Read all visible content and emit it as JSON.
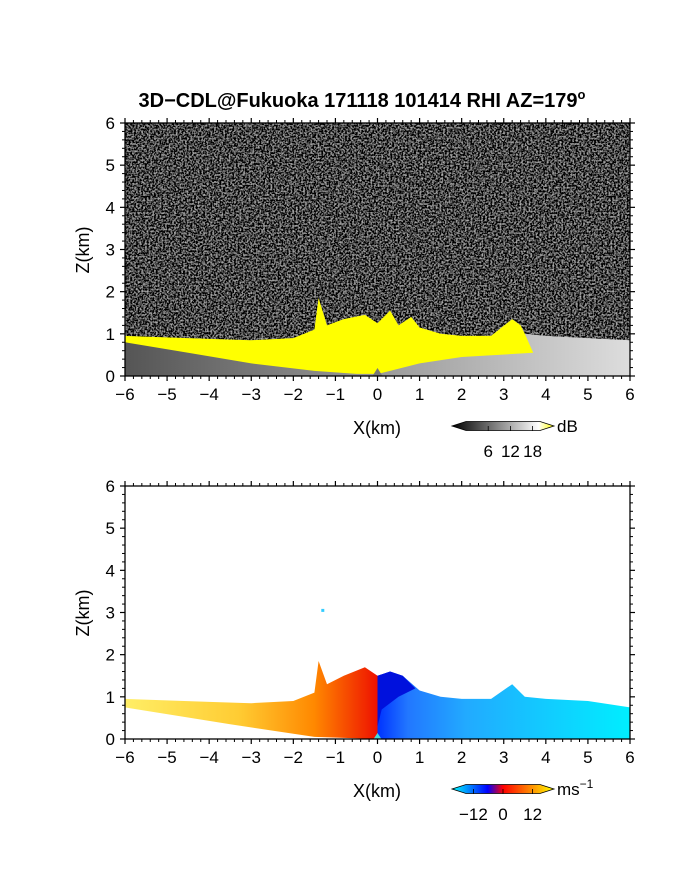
{
  "figure": {
    "title": "3D−CDL@Fukuoka 171118 101414 RHI AZ=179",
    "title_superscript": "o"
  },
  "chart_data": [
    {
      "type": "heatmap",
      "name": "reflectivity-panel",
      "xlabel": "X(km)",
      "ylabel": "Z(km)",
      "xlim": [
        -6,
        6
      ],
      "ylim": [
        0,
        6
      ],
      "xticks": [
        "−6",
        "−5",
        "−4",
        "−3",
        "−2",
        "−1",
        "0",
        "1",
        "2",
        "3",
        "4",
        "5",
        "6"
      ],
      "yticks": [
        "0",
        "1",
        "2",
        "3",
        "4",
        "5",
        "6"
      ],
      "background": "noise",
      "colorbar": {
        "unit": "dB",
        "ticks": [
          "6",
          "12",
          "18"
        ],
        "tick_values": [
          6,
          12,
          18
        ],
        "range": [
          0,
          20
        ],
        "colors": [
          "#000000",
          "#ffffff",
          "#ffff00"
        ]
      },
      "layer_top_km": [
        [
          -6,
          0.95
        ],
        [
          -4,
          0.88
        ],
        [
          -3,
          0.85
        ],
        [
          -2,
          0.9
        ],
        [
          -1.5,
          1.1
        ],
        [
          -1.4,
          1.85
        ],
        [
          -1.2,
          1.2
        ],
        [
          -0.8,
          1.35
        ],
        [
          -0.3,
          1.45
        ],
        [
          0,
          1.25
        ],
        [
          0.3,
          1.55
        ],
        [
          0.5,
          1.2
        ],
        [
          0.8,
          1.4
        ],
        [
          1,
          1.15
        ],
        [
          1.5,
          1.0
        ],
        [
          2,
          0.95
        ],
        [
          2.7,
          0.95
        ],
        [
          3.2,
          1.35
        ],
        [
          3.4,
          1.2
        ],
        [
          3.5,
          1.0
        ],
        [
          4,
          0.95
        ],
        [
          5,
          0.9
        ],
        [
          6,
          0.85
        ]
      ],
      "yellow_extent_km": [
        -6,
        3.7
      ],
      "strong_echo_dB_range": [
        18,
        20
      ]
    },
    {
      "type": "heatmap",
      "name": "velocity-panel",
      "xlabel": "X(km)",
      "ylabel": "Z(km)",
      "xlim": [
        -6,
        6
      ],
      "ylim": [
        0,
        6
      ],
      "xticks": [
        "−6",
        "−5",
        "−4",
        "−3",
        "−2",
        "−1",
        "0",
        "1",
        "2",
        "3",
        "4",
        "5",
        "6"
      ],
      "yticks": [
        "0",
        "1",
        "2",
        "3",
        "4",
        "5",
        "6"
      ],
      "background": "white",
      "colorbar": {
        "unit": "ms",
        "unit_superscript": "−1",
        "ticks": [
          "−12",
          "0",
          "12"
        ],
        "tick_values": [
          -12,
          0,
          12
        ],
        "range": [
          -15,
          15
        ],
        "colors": [
          "#00ffff",
          "#0000ff",
          "#ff0000",
          "#ffff00"
        ]
      },
      "layer_top_km": [
        [
          -6,
          0.95
        ],
        [
          -4,
          0.88
        ],
        [
          -3,
          0.85
        ],
        [
          -2,
          0.9
        ],
        [
          -1.5,
          1.1
        ],
        [
          -1.4,
          1.85
        ],
        [
          -1.2,
          1.3
        ],
        [
          -0.8,
          1.5
        ],
        [
          -0.3,
          1.7
        ],
        [
          0,
          1.5
        ],
        [
          0.3,
          1.6
        ],
        [
          0.6,
          1.5
        ],
        [
          1,
          1.15
        ],
        [
          1.5,
          1.0
        ],
        [
          2,
          0.95
        ],
        [
          2.7,
          0.95
        ],
        [
          3.2,
          1.3
        ],
        [
          3.4,
          1.1
        ],
        [
          3.5,
          1.0
        ],
        [
          4,
          0.95
        ],
        [
          5,
          0.9
        ],
        [
          6,
          0.75
        ]
      ],
      "velocity_ms": {
        "x_-6": 12,
        "x_-3": 10,
        "x_-1": 0,
        "x_0": -8,
        "x_1": -10,
        "x_3": -12,
        "x_6": -13
      },
      "isolated_echo_km": [
        -1.3,
        3.05
      ]
    }
  ]
}
